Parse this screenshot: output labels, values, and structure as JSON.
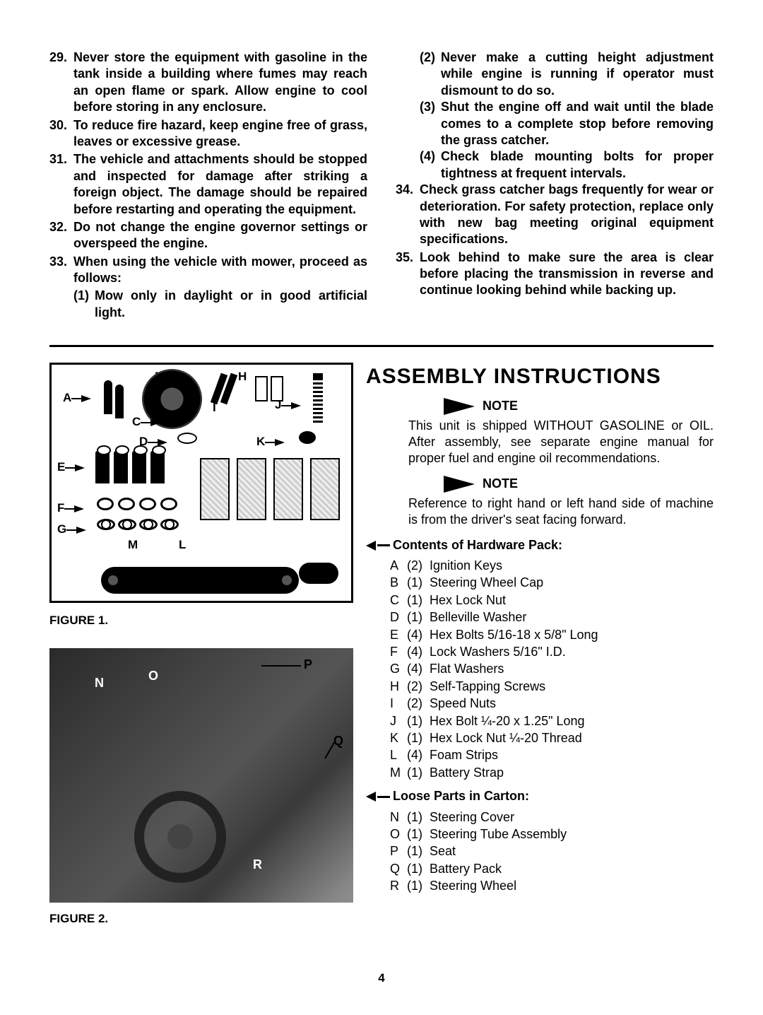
{
  "rules_left": [
    {
      "n": "29.",
      "t": "Never store the equipment with gasoline in the tank inside a building where fumes may reach an open flame or spark. Allow engine to cool before storing in any enclosure."
    },
    {
      "n": "30.",
      "t": "To reduce fire hazard, keep engine free of grass, leaves or excessive grease."
    },
    {
      "n": "31.",
      "t": "The vehicle and attachments should be stopped and inspected for damage after striking a foreign object. The damage should be repaired before restarting and operating the equipment."
    },
    {
      "n": "32.",
      "t": "Do not change the engine governor settings or overspeed the engine."
    },
    {
      "n": "33.",
      "t": "When using the vehicle with mower, proceed as follows:"
    }
  ],
  "subs_left": [
    {
      "n": "(1)",
      "t": "Mow only in daylight or in good artificial light."
    }
  ],
  "subs_right": [
    {
      "n": "(2)",
      "t": "Never make a cutting height adjustment while engine is running if operator must dismount to do so."
    },
    {
      "n": "(3)",
      "t": "Shut the engine off and wait until the blade comes to a complete stop before removing the grass catcher."
    },
    {
      "n": "(4)",
      "t": "Check blade mounting bolts for proper tightness at frequent intervals."
    }
  ],
  "rules_right": [
    {
      "n": "34.",
      "t": "Check grass catcher bags frequently for wear or deterioration. For safety protection, replace only with new bag meeting original equipment specifications."
    },
    {
      "n": "35.",
      "t": "Look behind to make sure the area is clear before placing the transmission in reverse and continue looking behind while backing up."
    }
  ],
  "fig1_caption": "FIGURE 1.",
  "fig2_caption": "FIGURE 2.",
  "assembly_title": "ASSEMBLY INSTRUCTIONS",
  "note_label": "NOTE",
  "note1": "This unit is shipped WITHOUT GASOLINE or OIL. After assembly, see separate engine manual for proper fuel and engine oil recommendations.",
  "note2": "Reference to right hand or left hand side of machine is from the driver's seat facing forward.",
  "hw_head": "Contents of Hardware Pack:",
  "hw": [
    {
      "l": "A",
      "q": "(2)",
      "d": "Ignition Keys"
    },
    {
      "l": "B",
      "q": "(1)",
      "d": "Steering Wheel Cap"
    },
    {
      "l": "C",
      "q": "(1)",
      "d": "Hex Lock Nut"
    },
    {
      "l": "D",
      "q": "(1)",
      "d": "Belleville Washer"
    },
    {
      "l": "E",
      "q": "(4)",
      "d": "Hex Bolts 5/16-18 x 5/8\" Long"
    },
    {
      "l": "F",
      "q": "(4)",
      "d": "Lock Washers 5/16\" I.D."
    },
    {
      "l": "G",
      "q": "(4)",
      "d": "Flat Washers"
    },
    {
      "l": "H",
      "q": "(2)",
      "d": "Self-Tapping Screws"
    },
    {
      "l": "I",
      "q": "(2)",
      "d": "Speed Nuts"
    },
    {
      "l": "J",
      "q": "(1)",
      "d": "Hex Bolt ¼-20 x 1.25\" Long"
    },
    {
      "l": "K",
      "q": "(1)",
      "d": "Hex Lock Nut ¼-20 Thread"
    },
    {
      "l": "L",
      "q": "(4)",
      "d": "Foam Strips"
    },
    {
      "l": "M",
      "q": "(1)",
      "d": "Battery Strap"
    }
  ],
  "loose_head": "Loose Parts in Carton:",
  "loose": [
    {
      "l": "N",
      "q": "(1)",
      "d": "Steering Cover"
    },
    {
      "l": "O",
      "q": "(1)",
      "d": "Steering Tube Assembly"
    },
    {
      "l": "P",
      "q": "(1)",
      "d": "Seat"
    },
    {
      "l": "Q",
      "q": "(1)",
      "d": "Battery Pack"
    },
    {
      "l": "R",
      "q": "(1)",
      "d": "Steering Wheel"
    }
  ],
  "fig1_letters": [
    "A",
    "B",
    "C",
    "D",
    "E",
    "F",
    "G",
    "H",
    "I",
    "J",
    "K",
    "L",
    "M"
  ],
  "fig2_letters": {
    "N": "N",
    "O": "O",
    "P": "P",
    "Q": "Q",
    "R": "R"
  },
  "page_number": "4"
}
